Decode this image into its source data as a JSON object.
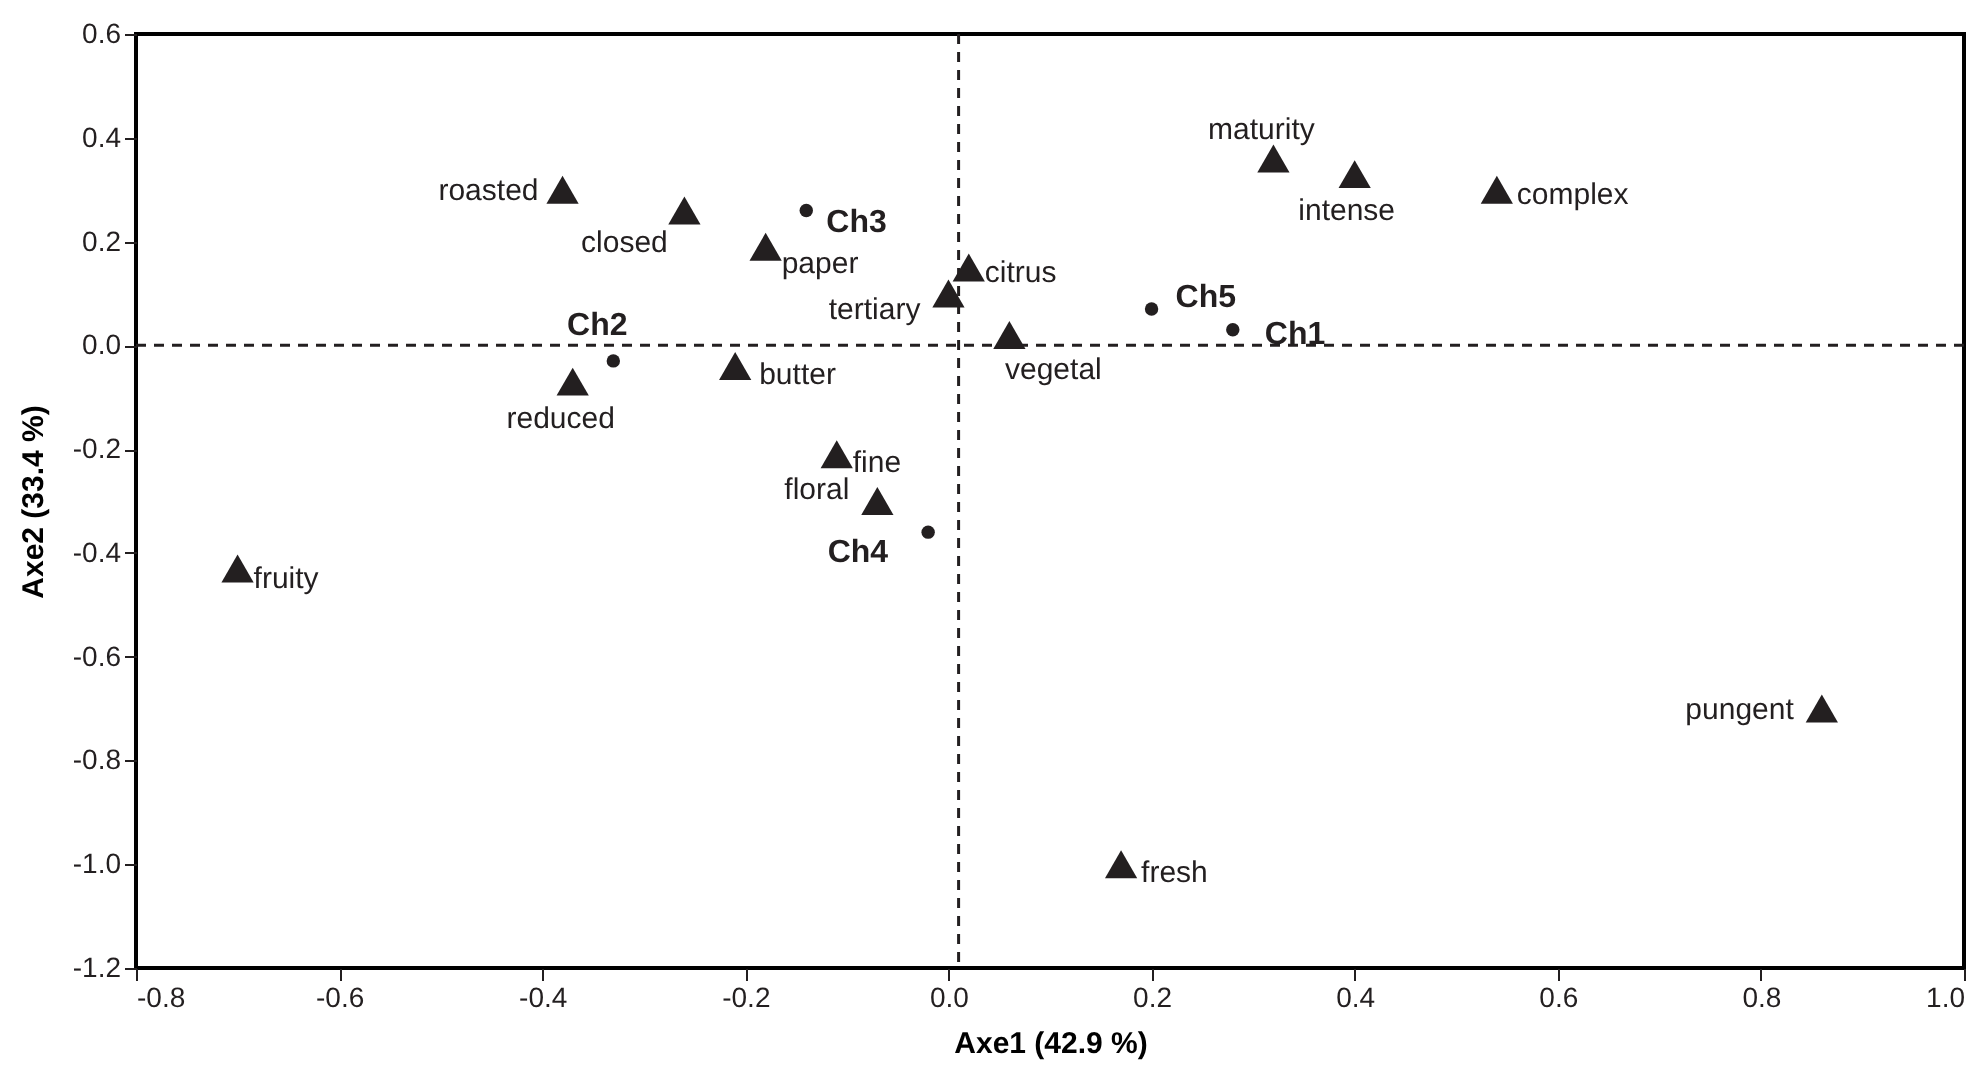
{
  "chart_data": {
    "type": "scatter",
    "xlabel": "Axe1 (42.9 %)",
    "ylabel": "Axe2 (33.4 %)",
    "series": [
      {
        "color": "#231f20",
        "marker": "triangle",
        "x": [
          -0.38,
          -0.26,
          -0.18,
          0.0,
          0.02,
          -0.37,
          -0.21,
          -0.11,
          -0.07,
          -0.7,
          0.06,
          0.32,
          0.4,
          0.54,
          0.86,
          0.17
        ],
        "values": [
          0.3,
          0.26,
          0.19,
          0.1,
          0.15,
          -0.07,
          -0.04,
          -0.21,
          -0.3,
          -0.43,
          0.02,
          0.36,
          0.33,
          0.3,
          -0.7,
          -1.0
        ]
      },
      {
        "color": "#231f20",
        "marker": "circle",
        "x": [
          -0.14,
          -0.33,
          -0.02,
          0.2,
          0.28
        ],
        "values": [
          0.26,
          -0.03,
          -0.36,
          0.07,
          0.03
        ]
      }
    ],
    "annotations": [
      {
        "text": "roasted",
        "x": -0.38,
        "y": 0.3
      },
      {
        "text": "closed",
        "x": -0.26,
        "y": 0.26
      },
      {
        "text": "paper",
        "x": -0.18,
        "y": 0.19
      },
      {
        "text": "tertiary",
        "x": 0.0,
        "y": 0.1
      },
      {
        "text": "citrus",
        "x": 0.02,
        "y": 0.15
      },
      {
        "text": "reduced",
        "x": -0.37,
        "y": -0.07
      },
      {
        "text": "butter",
        "x": -0.21,
        "y": -0.04
      },
      {
        "text": "fine",
        "x": -0.11,
        "y": -0.21
      },
      {
        "text": "floral",
        "x": -0.07,
        "y": -0.3
      },
      {
        "text": "fruity",
        "x": -0.7,
        "y": -0.43
      },
      {
        "text": "vegetal",
        "x": 0.06,
        "y": 0.02
      },
      {
        "text": "maturity",
        "x": 0.32,
        "y": 0.36
      },
      {
        "text": "intense",
        "x": 0.4,
        "y": 0.33
      },
      {
        "text": "complex",
        "x": 0.54,
        "y": 0.3
      },
      {
        "text": "pungent",
        "x": 0.86,
        "y": -0.7
      },
      {
        "text": "fresh",
        "x": 0.17,
        "y": -1.0
      },
      {
        "text": "Ch3",
        "x": -0.14,
        "y": 0.26
      },
      {
        "text": "Ch2",
        "x": -0.33,
        "y": -0.03
      },
      {
        "text": "Ch4",
        "x": -0.02,
        "y": -0.36
      },
      {
        "text": "Ch5",
        "x": 0.2,
        "y": 0.07
      },
      {
        "text": "Ch1",
        "x": 0.28,
        "y": 0.03
      }
    ],
    "ref_lines": [
      {
        "axis": "x",
        "value": 0.01,
        "line_style": "dashed"
      },
      {
        "axis": "y",
        "value": 0,
        "line_style": "dashed"
      }
    ],
    "xlim": [
      -0.8,
      1.0
    ],
    "xticks": [
      -0.8,
      -0.6,
      -0.4,
      -0.2,
      {
        "value": 0,
        "label": "0.0"
      },
      0.2,
      0.4,
      0.6,
      0.8,
      {
        "value": 1,
        "label": "1.0"
      }
    ],
    "ylim": [
      -1.2,
      0.6
    ],
    "yticks": [
      -1.2,
      {
        "value": -1,
        "label": "-1.0"
      },
      -0.8,
      -0.6,
      -0.4,
      -0.2,
      {
        "value": 0,
        "label": "0.0"
      },
      0.2,
      0.4,
      0.6
    ],
    "grid": false
  }
}
